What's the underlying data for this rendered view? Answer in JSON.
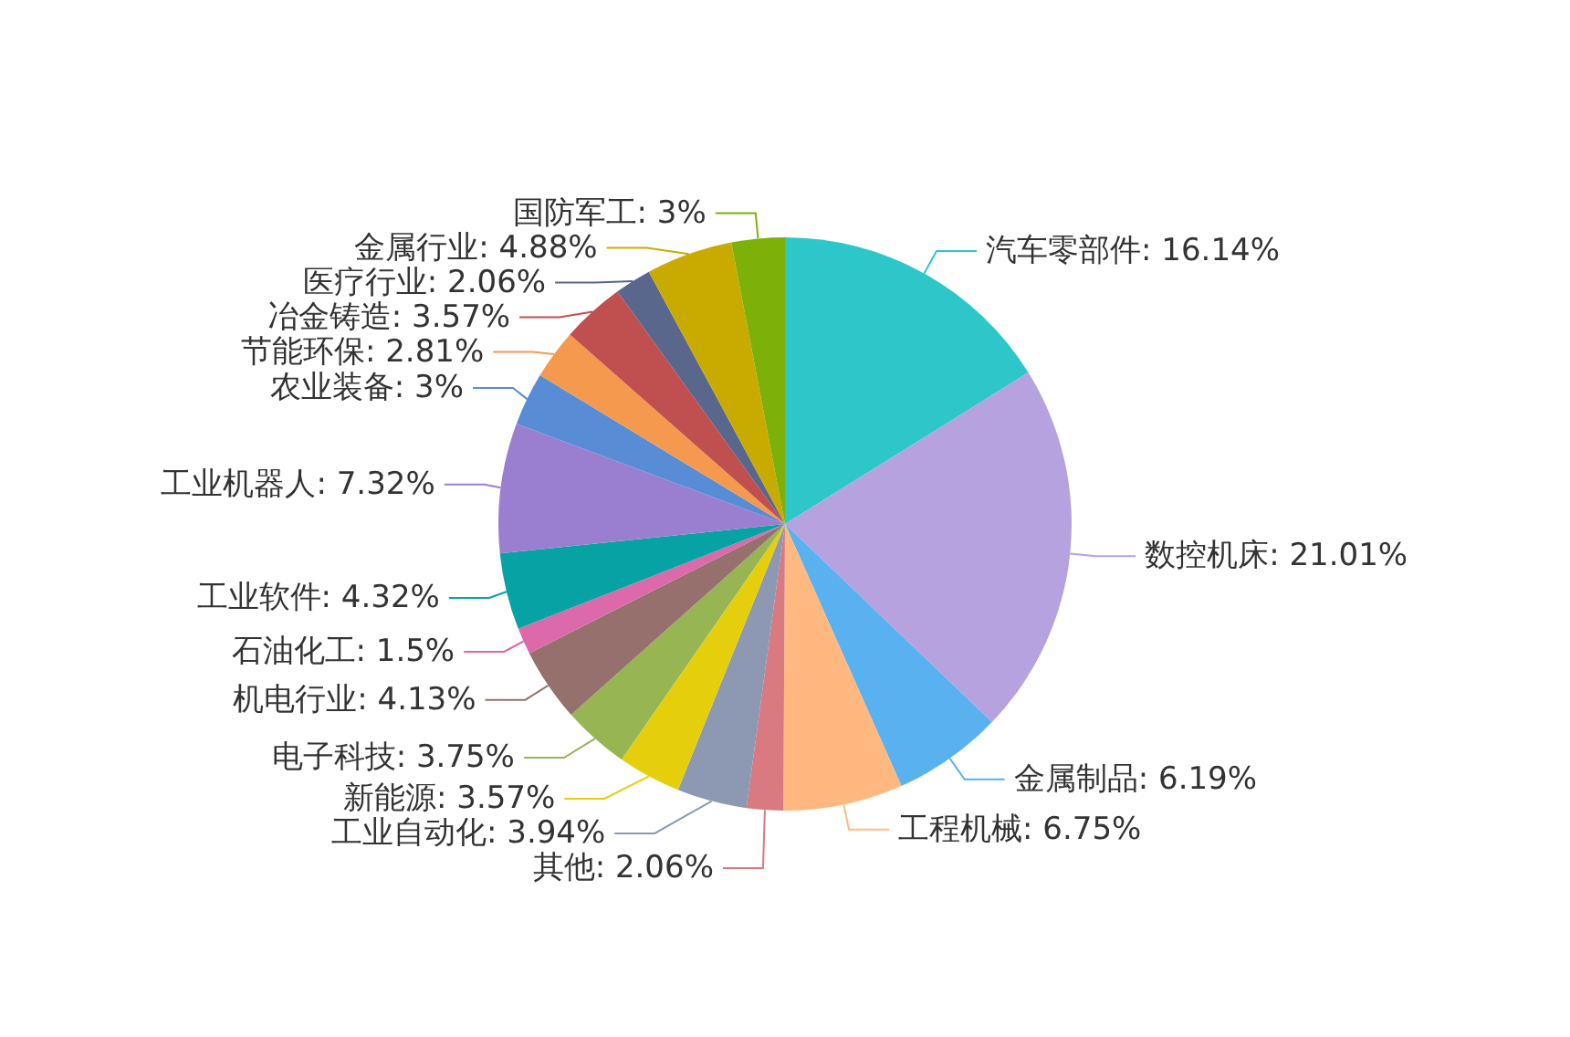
{
  "chart_data": {
    "type": "pie",
    "categories": [
      "汽车零部件",
      "数控机床",
      "金属制品",
      "工程机械",
      "其他",
      "工业自动化",
      "新能源",
      "电子科技",
      "机电行业",
      "石油化工",
      "工业软件",
      "工业机器人",
      "农业装备",
      "节能环保",
      "冶金铸造",
      "医疗行业",
      "金属行业",
      "国防军工"
    ],
    "values": [
      16.14,
      21.01,
      6.19,
      6.75,
      2.06,
      3.94,
      3.57,
      3.75,
      4.13,
      1.5,
      4.32,
      7.32,
      3,
      2.81,
      3.57,
      2.06,
      4.88,
      3
    ],
    "value_labels": [
      ": 16.14%",
      ": 21.01%",
      ": 6.19%",
      ": 6.75%",
      ": 2.06%",
      ": 3.94%",
      ": 3.57%",
      ": 3.75%",
      ": 4.13%",
      ": 1.5%",
      ": 4.32%",
      ": 7.32%",
      ": 3%",
      ": 2.81%",
      ": 3.57%",
      ": 2.06%",
      ": 4.88%",
      ": 3%"
    ],
    "colors": [
      "#2ec7c9",
      "#b6a2de",
      "#5ab1ef",
      "#ffb980",
      "#d87a80",
      "#8d98b3",
      "#e5cf0d",
      "#97b552",
      "#95706d",
      "#dc69aa",
      "#07a2a4",
      "#9a7fd1",
      "#588dd5",
      "#f5994e",
      "#c05050",
      "#59678c",
      "#c9ab00",
      "#7eb00a"
    ],
    "legend": false
  }
}
